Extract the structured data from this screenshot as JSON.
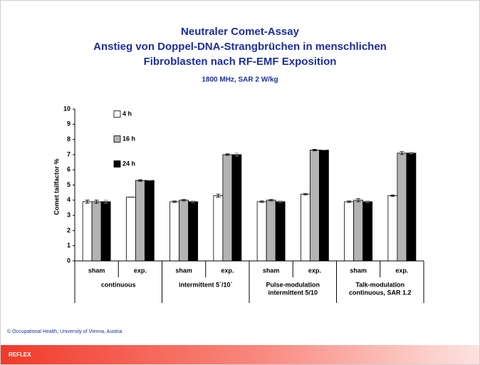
{
  "chart_data": {
    "type": "bar",
    "title": [
      "Neutraler Comet-Assay",
      "Anstieg von Doppel-DNA-Strangbrüchen in menschlichen",
      "Fibroblasten nach RF-EMF Exposition"
    ],
    "subtitle": "1800 MHz, SAR 2 W/kg",
    "y_label": "Comet tailfactor  %",
    "categories": [
      "sham",
      "exp.",
      "sham",
      "exp.",
      "sham",
      "exp.",
      "sham",
      "exp."
    ],
    "groups": [
      [
        "continuous"
      ],
      [
        "intermittent 5´/10´"
      ],
      [
        "Pulse-modulation",
        "intermittent 5/10"
      ],
      [
        "Talk-modulation",
        "continuous, SAR 1.2"
      ]
    ],
    "series": [
      {
        "name": "4 h",
        "color": "#ffffff",
        "values": [
          3.9,
          4.2,
          3.9,
          4.3,
          3.9,
          4.4,
          3.9,
          4.3
        ],
        "errors": [
          0.1,
          0.0,
          0.05,
          0.1,
          0.05,
          0.05,
          0.05,
          0.05
        ]
      },
      {
        "name": "16 h",
        "color": "#b3b3b3",
        "values": [
          3.9,
          5.3,
          4.0,
          7.0,
          4.0,
          7.3,
          4.0,
          7.1
        ],
        "errors": [
          0.1,
          0.05,
          0.05,
          0.05,
          0.05,
          0.05,
          0.1,
          0.1
        ]
      },
      {
        "name": "24 h",
        "color": "#000000",
        "values": [
          3.9,
          5.3,
          3.9,
          7.0,
          3.9,
          7.3,
          3.9,
          7.1
        ],
        "errors": [
          0.1,
          0.0,
          0.05,
          0.1,
          0.05,
          0.0,
          0.05,
          0.05
        ]
      }
    ],
    "ylim": [
      0,
      10
    ],
    "yticks": [
      0,
      1,
      2,
      3,
      4,
      5,
      6,
      7,
      8,
      9,
      10
    ],
    "footer": "© Occupational Health, University of Vienna, Austria",
    "banner": "REFLEX"
  }
}
